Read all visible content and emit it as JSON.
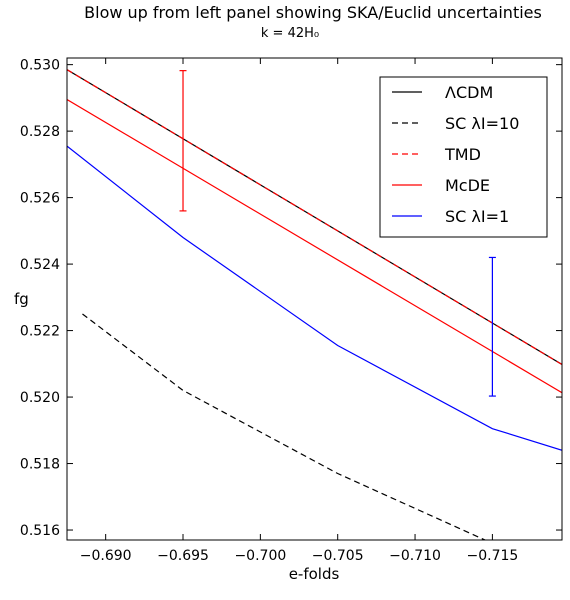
{
  "chart_data": {
    "type": "line",
    "title": "Blow up from left panel showing SKA/Euclid uncertainties",
    "subtitle": "k = 42H₀",
    "xlabel": "e-folds",
    "ylabel": "fg",
    "xlim": [
      -0.6875,
      -0.7195
    ],
    "ylim": [
      0.5157,
      0.5302
    ],
    "x_inverted": true,
    "xticks": [
      -0.69,
      -0.695,
      -0.7,
      -0.705,
      -0.71,
      -0.715
    ],
    "xtick_labels": [
      "−0.690",
      "−0.695",
      "−0.700",
      "−0.705",
      "−0.710",
      "−0.715"
    ],
    "yticks": [
      0.516,
      0.518,
      0.52,
      0.522,
      0.524,
      0.526,
      0.528,
      0.53
    ],
    "ytick_labels": [
      "0.516",
      "0.518",
      "0.520",
      "0.522",
      "0.524",
      "0.526",
      "0.528",
      "0.530"
    ],
    "grid": false,
    "legend_position": "top-right",
    "series": [
      {
        "name": "ΛCDM",
        "color": "#000000",
        "dash": "solid",
        "x": [
          -0.6875,
          -0.7195
        ],
        "y": [
          0.52985,
          0.52098
        ]
      },
      {
        "name": "SC λI=10",
        "color": "#000000",
        "dash": "dashed",
        "x": [
          -0.6885,
          -0.695,
          -0.705,
          -0.715,
          -0.7195
        ],
        "y": [
          0.5225,
          0.5202,
          0.5177,
          0.5156,
          0.5147
        ]
      },
      {
        "name": "TMD",
        "color": "#ff0000",
        "dash": "dashed",
        "x": [
          -0.6875,
          -0.7195
        ],
        "y": [
          0.52985,
          0.52098
        ]
      },
      {
        "name": "McDE",
        "color": "#ff0000",
        "dash": "solid",
        "x": [
          -0.6875,
          -0.7195
        ],
        "y": [
          0.52895,
          0.52013
        ]
      },
      {
        "name": "SC λI=1",
        "color": "#0000ff",
        "dash": "solid",
        "x": [
          -0.6875,
          -0.695,
          -0.705,
          -0.715,
          -0.7195
        ],
        "y": [
          0.52755,
          0.5248,
          0.52155,
          0.51905,
          0.5184
        ]
      }
    ],
    "error_bars": [
      {
        "x": -0.695,
        "y_low": 0.5256,
        "y_high": 0.52982,
        "color": "#ff0000"
      },
      {
        "x": -0.715,
        "y_low": 0.52003,
        "y_high": 0.5242,
        "color": "#0000ff"
      }
    ]
  }
}
